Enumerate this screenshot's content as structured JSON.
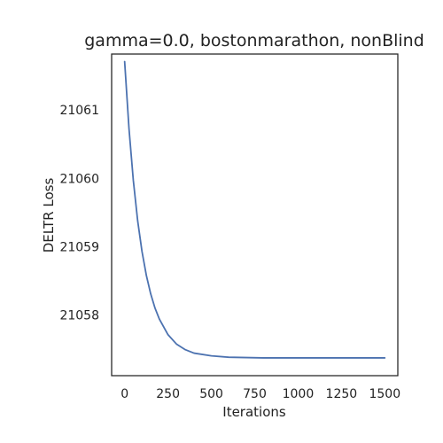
{
  "chart_data": {
    "type": "line",
    "title": "gamma=0.0, bostonmarathon, nonBlind",
    "xlabel": "Iterations",
    "ylabel": "DELTR Loss",
    "xlim": [
      -75,
      1575
    ],
    "ylim": [
      21057.11,
      21061.82
    ],
    "xticks": [
      0,
      250,
      500,
      750,
      1000,
      1250,
      1500
    ],
    "yticks": [
      21058,
      21059,
      21060,
      21061
    ],
    "grid": false,
    "series": [
      {
        "color": "#4c72b0",
        "x": [
          0,
          25,
          50,
          75,
          100,
          125,
          150,
          175,
          200,
          250,
          300,
          350,
          400,
          500,
          600,
          800,
          1000,
          1250,
          1500
        ],
        "y": [
          21061.71,
          21060.73,
          21059.97,
          21059.38,
          21058.93,
          21058.58,
          21058.31,
          21058.1,
          21057.94,
          21057.71,
          21057.57,
          21057.49,
          21057.44,
          21057.4,
          21057.38,
          21057.37,
          21057.37,
          21057.37,
          21057.37
        ]
      }
    ]
  }
}
